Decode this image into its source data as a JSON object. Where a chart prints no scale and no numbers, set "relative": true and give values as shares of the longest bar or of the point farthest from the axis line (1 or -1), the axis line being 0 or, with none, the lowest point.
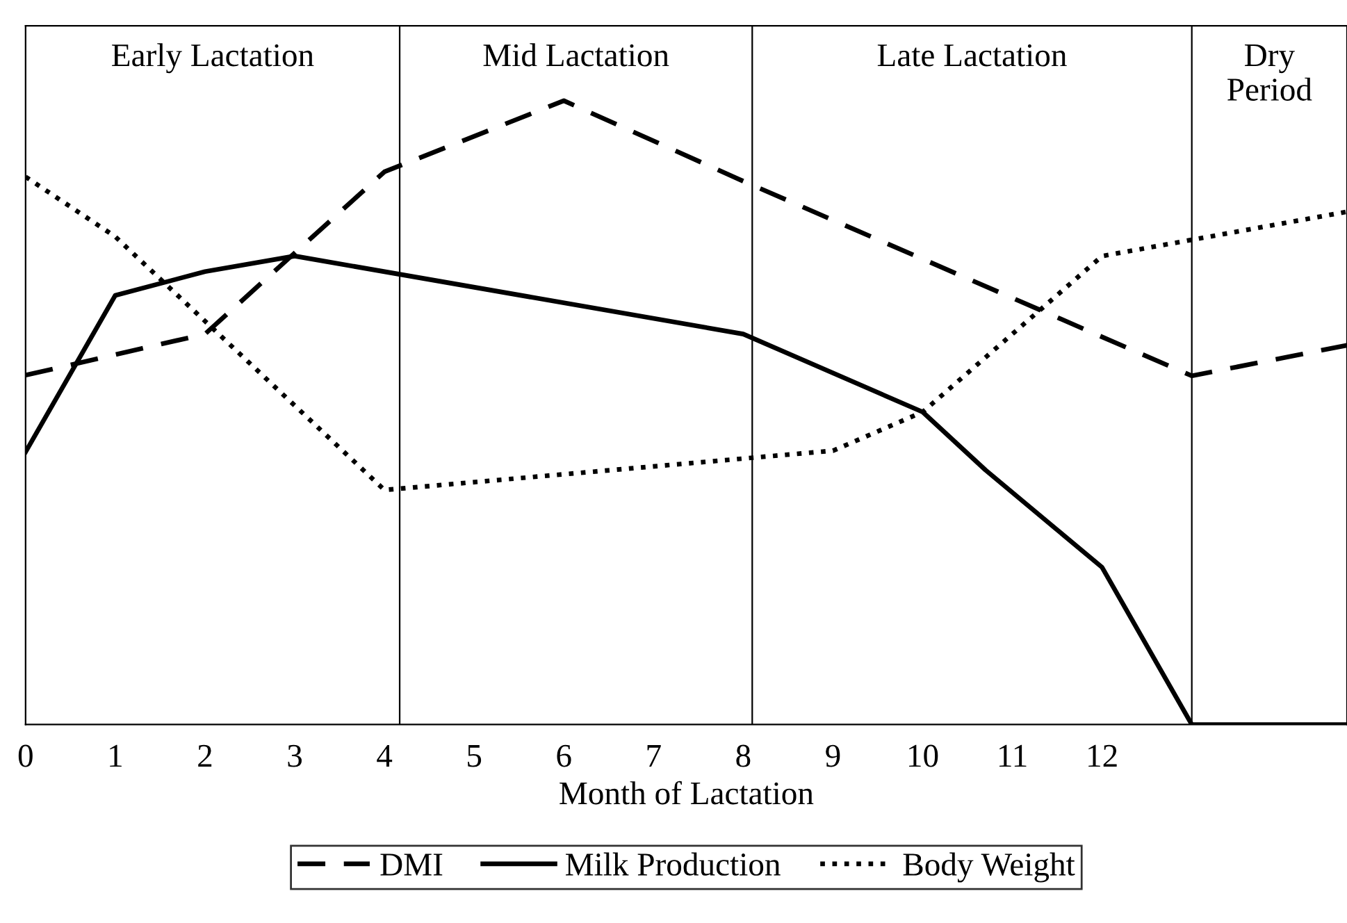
{
  "chart_data": {
    "type": "line",
    "relative": true,
    "xlabel": "Month of Lactation",
    "xlim": [
      0,
      14.73
    ],
    "xticks": [
      0,
      1,
      2,
      3,
      4,
      5,
      6,
      7,
      8,
      9,
      10,
      11,
      12
    ],
    "grid": false,
    "legend": "bottom",
    "marker": "none",
    "series": [
      {
        "name": "DMI",
        "color": "#000000",
        "line_style": "dashed",
        "x": [
          0,
          2,
          4,
          6,
          8,
          13,
          14.73
        ],
        "values": [
          0.56,
          0.626,
          0.886,
          1,
          0.871,
          0.559,
          0.608
        ]
      },
      {
        "name": "Milk Production",
        "color": "#000000",
        "line_style": "solid",
        "x": [
          0,
          1,
          2,
          3,
          8,
          10,
          10.7,
          12,
          13,
          14.73
        ],
        "values": [
          0.437,
          0.688,
          0.726,
          0.751,
          0.626,
          0.501,
          0.408,
          0.252,
          0,
          0
        ]
      },
      {
        "name": "Body Weight",
        "color": "#000000",
        "line_style": "dotted",
        "x": [
          0,
          1,
          4,
          9,
          10,
          12,
          13,
          14.73
        ],
        "values": [
          0.878,
          0.782,
          0.376,
          0.439,
          0.501,
          0.751,
          0.777,
          0.822
        ]
      }
    ],
    "ref_lines": [
      {
        "axis": "x",
        "value": 4.17,
        "color": "#000000"
      },
      {
        "axis": "x",
        "value": 8.1,
        "color": "#000000"
      },
      {
        "axis": "x",
        "value": 13,
        "color": "#000000"
      }
    ],
    "annotations": [
      "Early Lactation",
      "Mid Lactation",
      "Late Lactation",
      "Dry\nPeriod"
    ]
  }
}
